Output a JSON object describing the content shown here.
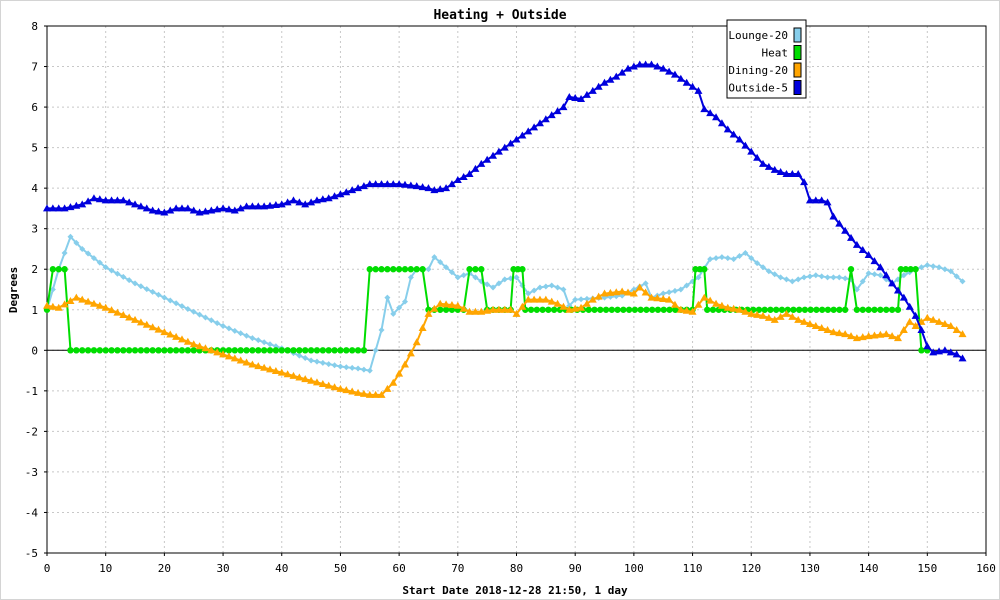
{
  "chart_data": {
    "type": "line",
    "title": "Heating + Outside",
    "xlabel": "Start Date 2018-12-28 21:50, 1 day",
    "ylabel": "Degrees",
    "xlim": [
      0,
      160
    ],
    "ylim": [
      -5,
      8
    ],
    "xticks": [
      0,
      10,
      20,
      30,
      40,
      50,
      60,
      70,
      80,
      90,
      100,
      110,
      120,
      130,
      140,
      150,
      160
    ],
    "yticks": [
      -5,
      -4,
      -3,
      -2,
      -1,
      0,
      1,
      2,
      3,
      4,
      5,
      6,
      7,
      8
    ],
    "grid": true,
    "legend_position": "top-right",
    "series": [
      {
        "name": "Lounge-20",
        "color": "#87ceeb",
        "marker": "diamond",
        "points": [
          [
            0,
            1.0
          ],
          [
            2,
            2.0
          ],
          [
            4,
            2.8
          ],
          [
            6,
            2.5
          ],
          [
            10,
            2.05
          ],
          [
            15,
            1.65
          ],
          [
            20,
            1.3
          ],
          [
            25,
            0.95
          ],
          [
            30,
            0.6
          ],
          [
            35,
            0.3
          ],
          [
            40,
            0.05
          ],
          [
            45,
            -0.25
          ],
          [
            50,
            -0.4
          ],
          [
            53,
            -0.45
          ],
          [
            55,
            -0.5
          ],
          [
            57,
            0.5
          ],
          [
            58,
            1.3
          ],
          [
            59,
            0.9
          ],
          [
            61,
            1.2
          ],
          [
            62,
            1.8
          ],
          [
            63,
            2.0
          ],
          [
            65,
            2.0
          ],
          [
            66,
            2.3
          ],
          [
            68,
            2.05
          ],
          [
            70,
            1.8
          ],
          [
            72,
            1.9
          ],
          [
            74,
            1.7
          ],
          [
            76,
            1.55
          ],
          [
            78,
            1.75
          ],
          [
            80,
            1.8
          ],
          [
            82,
            1.4
          ],
          [
            84,
            1.55
          ],
          [
            86,
            1.6
          ],
          [
            88,
            1.5
          ],
          [
            89,
            1.1
          ],
          [
            90,
            1.25
          ],
          [
            95,
            1.3
          ],
          [
            98,
            1.35
          ],
          [
            100,
            1.5
          ],
          [
            102,
            1.65
          ],
          [
            103,
            1.3
          ],
          [
            105,
            1.4
          ],
          [
            108,
            1.5
          ],
          [
            111,
            1.8
          ],
          [
            113,
            2.25
          ],
          [
            115,
            2.3
          ],
          [
            117,
            2.25
          ],
          [
            119,
            2.4
          ],
          [
            121,
            2.15
          ],
          [
            123,
            1.95
          ],
          [
            125,
            1.8
          ],
          [
            127,
            1.7
          ],
          [
            129,
            1.8
          ],
          [
            131,
            1.85
          ],
          [
            133,
            1.8
          ],
          [
            135,
            1.8
          ],
          [
            137,
            1.75
          ],
          [
            138,
            1.5
          ],
          [
            140,
            1.9
          ],
          [
            142,
            1.85
          ],
          [
            144,
            1.65
          ],
          [
            146,
            1.85
          ],
          [
            148,
            2.0
          ],
          [
            150,
            2.1
          ],
          [
            152,
            2.05
          ],
          [
            154,
            1.95
          ],
          [
            156,
            1.7
          ]
        ]
      },
      {
        "name": "Heat",
        "color": "#00dd00",
        "marker": "circle",
        "points": [
          [
            0,
            1
          ],
          [
            1,
            2
          ],
          [
            3,
            2
          ],
          [
            4,
            0
          ],
          [
            54,
            0
          ],
          [
            55,
            2
          ],
          [
            64,
            2
          ],
          [
            65,
            1
          ],
          [
            71,
            1
          ],
          [
            72,
            2
          ],
          [
            74,
            2
          ],
          [
            75,
            1
          ],
          [
            79,
            1
          ],
          [
            79.5,
            2
          ],
          [
            81,
            2
          ],
          [
            81.5,
            1
          ],
          [
            110,
            1
          ],
          [
            110.5,
            2
          ],
          [
            112,
            2
          ],
          [
            112.5,
            1
          ],
          [
            136,
            1
          ],
          [
            137,
            2
          ],
          [
            138,
            1
          ],
          [
            145,
            1
          ],
          [
            145.5,
            2
          ],
          [
            148,
            2
          ],
          [
            149,
            0
          ],
          [
            150,
            0
          ]
        ]
      },
      {
        "name": "Dining-20",
        "color": "#ffa500",
        "marker": "triangle",
        "points": [
          [
            0,
            1.1
          ],
          [
            2,
            1.05
          ],
          [
            5,
            1.3
          ],
          [
            10,
            1.05
          ],
          [
            15,
            0.75
          ],
          [
            20,
            0.45
          ],
          [
            25,
            0.15
          ],
          [
            30,
            -0.1
          ],
          [
            35,
            -0.35
          ],
          [
            40,
            -0.55
          ],
          [
            45,
            -0.75
          ],
          [
            50,
            -0.95
          ],
          [
            53,
            -1.05
          ],
          [
            55,
            -1.1
          ],
          [
            57,
            -1.1
          ],
          [
            59,
            -0.8
          ],
          [
            61,
            -0.35
          ],
          [
            63,
            0.2
          ],
          [
            65,
            0.9
          ],
          [
            67,
            1.15
          ],
          [
            70,
            1.1
          ],
          [
            72,
            0.95
          ],
          [
            74,
            0.95
          ],
          [
            76,
            1.0
          ],
          [
            79,
            1.0
          ],
          [
            80,
            0.9
          ],
          [
            82,
            1.25
          ],
          [
            85,
            1.25
          ],
          [
            87,
            1.15
          ],
          [
            89,
            1.0
          ],
          [
            91,
            1.05
          ],
          [
            93,
            1.25
          ],
          [
            95,
            1.4
          ],
          [
            98,
            1.45
          ],
          [
            100,
            1.4
          ],
          [
            101,
            1.55
          ],
          [
            103,
            1.3
          ],
          [
            106,
            1.25
          ],
          [
            108,
            1.0
          ],
          [
            110,
            0.95
          ],
          [
            112,
            1.3
          ],
          [
            114,
            1.15
          ],
          [
            116,
            1.05
          ],
          [
            118,
            1.0
          ],
          [
            120,
            0.9
          ],
          [
            122,
            0.85
          ],
          [
            124,
            0.75
          ],
          [
            126,
            0.9
          ],
          [
            128,
            0.75
          ],
          [
            130,
            0.65
          ],
          [
            132,
            0.55
          ],
          [
            134,
            0.45
          ],
          [
            136,
            0.4
          ],
          [
            138,
            0.3
          ],
          [
            140,
            0.35
          ],
          [
            143,
            0.4
          ],
          [
            145,
            0.3
          ],
          [
            147,
            0.7
          ],
          [
            148,
            0.6
          ],
          [
            150,
            0.8
          ],
          [
            152,
            0.7
          ],
          [
            154,
            0.6
          ],
          [
            156,
            0.4
          ]
        ]
      },
      {
        "name": "Outside-5",
        "color": "#0000dd",
        "marker": "triangle",
        "points": [
          [
            0,
            3.5
          ],
          [
            3,
            3.5
          ],
          [
            6,
            3.6
          ],
          [
            8,
            3.75
          ],
          [
            10,
            3.7
          ],
          [
            13,
            3.7
          ],
          [
            16,
            3.55
          ],
          [
            18,
            3.45
          ],
          [
            20,
            3.4
          ],
          [
            22,
            3.5
          ],
          [
            24,
            3.5
          ],
          [
            26,
            3.4
          ],
          [
            28,
            3.45
          ],
          [
            30,
            3.5
          ],
          [
            32,
            3.45
          ],
          [
            34,
            3.55
          ],
          [
            37,
            3.55
          ],
          [
            40,
            3.6
          ],
          [
            42,
            3.7
          ],
          [
            44,
            3.6
          ],
          [
            46,
            3.7
          ],
          [
            48,
            3.75
          ],
          [
            50,
            3.85
          ],
          [
            52,
            3.95
          ],
          [
            55,
            4.1
          ],
          [
            57,
            4.1
          ],
          [
            60,
            4.1
          ],
          [
            63,
            4.05
          ],
          [
            65,
            4.0
          ],
          [
            66,
            3.95
          ],
          [
            68,
            4.0
          ],
          [
            70,
            4.2
          ],
          [
            72,
            4.35
          ],
          [
            74,
            4.6
          ],
          [
            76,
            4.8
          ],
          [
            78,
            5.0
          ],
          [
            80,
            5.2
          ],
          [
            82,
            5.4
          ],
          [
            84,
            5.6
          ],
          [
            86,
            5.8
          ],
          [
            88,
            6.0
          ],
          [
            89,
            6.25
          ],
          [
            91,
            6.2
          ],
          [
            93,
            6.4
          ],
          [
            95,
            6.6
          ],
          [
            97,
            6.75
          ],
          [
            99,
            6.95
          ],
          [
            101,
            7.05
          ],
          [
            103,
            7.05
          ],
          [
            105,
            6.95
          ],
          [
            107,
            6.8
          ],
          [
            109,
            6.6
          ],
          [
            111,
            6.4
          ],
          [
            112,
            5.95
          ],
          [
            114,
            5.75
          ],
          [
            116,
            5.45
          ],
          [
            118,
            5.2
          ],
          [
            120,
            4.9
          ],
          [
            122,
            4.6
          ],
          [
            124,
            4.45
          ],
          [
            126,
            4.35
          ],
          [
            128,
            4.35
          ],
          [
            129,
            4.15
          ],
          [
            130,
            3.7
          ],
          [
            132,
            3.7
          ],
          [
            133,
            3.65
          ],
          [
            134,
            3.3
          ],
          [
            136,
            2.95
          ],
          [
            138,
            2.6
          ],
          [
            140,
            2.35
          ],
          [
            142,
            2.05
          ],
          [
            144,
            1.65
          ],
          [
            146,
            1.3
          ],
          [
            148,
            0.85
          ],
          [
            149,
            0.5
          ],
          [
            150,
            0.1
          ],
          [
            151,
            -0.05
          ],
          [
            153,
            0.0
          ],
          [
            155,
            -0.1
          ],
          [
            156,
            -0.2
          ]
        ]
      }
    ]
  }
}
